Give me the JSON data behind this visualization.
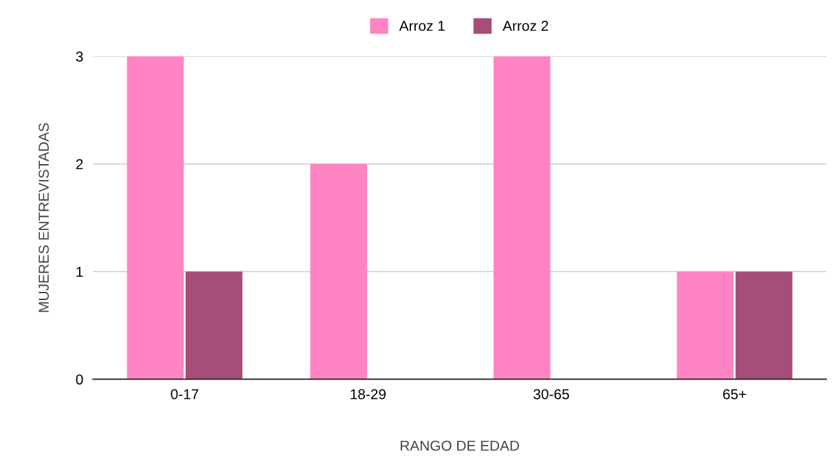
{
  "chart_data": {
    "type": "bar",
    "xlabel": "RANGO DE EDAD",
    "ylabel": "MUJERES ENTREVISTADAS",
    "categories": [
      "0-17",
      "18-29",
      "30-65",
      "65+"
    ],
    "series": [
      {
        "name": "Arroz 1",
        "color": "#ff84c3",
        "values": [
          3,
          2,
          3,
          1
        ]
      },
      {
        "name": "Arroz 2",
        "color": "#a64d79",
        "values": [
          1,
          0,
          0,
          1
        ]
      }
    ],
    "ylim": [
      0,
      3
    ],
    "yticks": [
      0,
      1,
      2,
      3
    ],
    "grid": "y",
    "legend": "top"
  }
}
